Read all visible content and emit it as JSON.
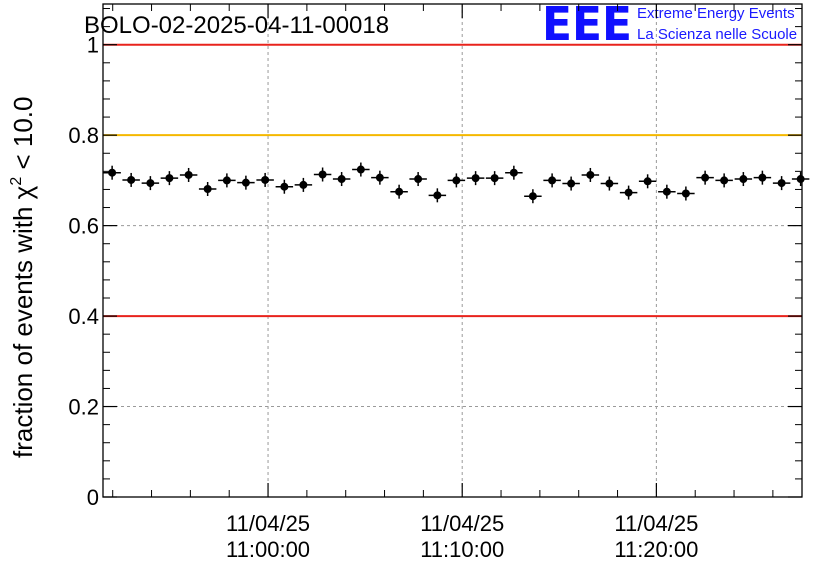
{
  "chart_data": {
    "type": "scatter",
    "title": "BOLO-02-2025-04-11-00018",
    "ylabel_main": "fraction of events with ",
    "ylabel_chi": "χ",
    "ylabel_sup": "2",
    "ylabel_tail": " < 10.0",
    "xlabel": "",
    "ylim": [
      0,
      1.09
    ],
    "xlim_minutes": [
      -8.5,
      27.5
    ],
    "y_ticks": [
      "0",
      "0.2",
      "0.4",
      "0.6",
      "0.8",
      "1"
    ],
    "y_tick_values": [
      0,
      0.2,
      0.4,
      0.6,
      0.8,
      1.0
    ],
    "x_ticks": [
      {
        "minute": 0,
        "date": "11/04/25",
        "time": "11:00:00"
      },
      {
        "minute": 10,
        "date": "11/04/25",
        "time": "11:10:00"
      },
      {
        "minute": 20,
        "date": "11/04/25",
        "time": "11:20:00"
      }
    ],
    "reference_lines": [
      {
        "y": 1.0,
        "color": "#e8231c"
      },
      {
        "y": 0.8,
        "color": "#f5b800"
      },
      {
        "y": 0.4,
        "color": "#e8231c"
      }
    ],
    "grid": true,
    "marker_color": "#000000",
    "bin_width_minutes": 1,
    "x_minutes": [
      -8.03,
      -7.05,
      -6.06,
      -5.08,
      -4.09,
      -3.11,
      -2.12,
      -1.14,
      -0.15,
      0.84,
      1.82,
      2.81,
      3.79,
      4.78,
      5.76,
      6.75,
      7.73,
      8.72,
      9.7,
      10.69,
      11.67,
      12.66,
      13.64,
      14.63,
      15.61,
      16.6,
      17.58,
      18.57,
      19.55,
      20.54,
      21.52,
      22.51,
      23.49,
      24.48,
      25.46,
      26.45,
      27.43
    ],
    "values": [
      0.717,
      0.701,
      0.694,
      0.705,
      0.712,
      0.681,
      0.7,
      0.695,
      0.701,
      0.686,
      0.69,
      0.713,
      0.703,
      0.724,
      0.706,
      0.675,
      0.703,
      0.667,
      0.7,
      0.705,
      0.705,
      0.717,
      0.665,
      0.7,
      0.693,
      0.712,
      0.693,
      0.673,
      0.698,
      0.675,
      0.671,
      0.706,
      0.7,
      0.703,
      0.706,
      0.694,
      0.703
    ]
  },
  "logo": {
    "mark": "EEE",
    "line1": "Extreme Energy Events",
    "line2": "La Scienza nelle Scuole",
    "color": "#1010ff"
  }
}
